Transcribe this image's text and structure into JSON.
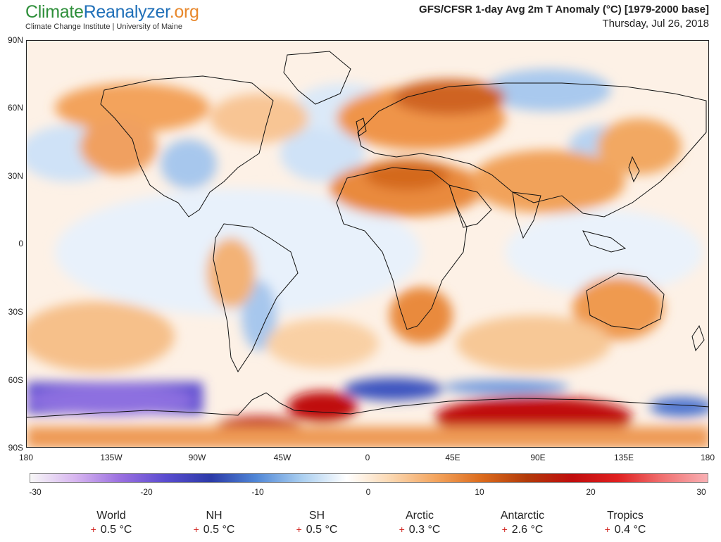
{
  "header": {
    "logo": {
      "part1": "Climate",
      "part2": "Reanalyzer",
      "part3": ".org"
    },
    "subtitle": "Climate Change Institute | University of Maine",
    "title": "GFS/CFSR 1-day Avg 2m T Anomaly (°C) [1979-2000 base]",
    "date": "Thursday, Jul 26, 2018"
  },
  "map": {
    "lat_labels": [
      "90N",
      "60N",
      "30N",
      "0",
      "30S",
      "60S",
      "90S"
    ],
    "lon_labels": [
      "180",
      "135W",
      "90W",
      "45W",
      "0",
      "45E",
      "90E",
      "135E",
      "180"
    ]
  },
  "colorbar": {
    "ticks": [
      "-30",
      "-20",
      "-10",
      "0",
      "10",
      "20",
      "30"
    ],
    "colors": [
      "#f7f7f7",
      "#d7b5f0",
      "#9a6fe0",
      "#5a4cd0",
      "#2b3aa8",
      "#4f86d6",
      "#a9cef0",
      "#ffffff",
      "#fbd7b0",
      "#f3a35c",
      "#db6a1c",
      "#b23a0a",
      "#c00d0d",
      "#e02020",
      "#f07070",
      "#f9b0b4"
    ]
  },
  "stats": [
    {
      "name": "World",
      "value": "0.5 °C"
    },
    {
      "name": "NH",
      "value": "0.5 °C"
    },
    {
      "name": "SH",
      "value": "0.5 °C"
    },
    {
      "name": "Arctic",
      "value": "0.3 °C"
    },
    {
      "name": "Antarctic",
      "value": "2.6 °C"
    },
    {
      "name": "Tropics",
      "value": "0.4 °C"
    }
  ],
  "colors": {
    "logo_green": "#2e8f3a",
    "logo_blue": "#1f6fb8",
    "logo_orange": "#e8882c",
    "stat_plus": "#d0201b"
  }
}
